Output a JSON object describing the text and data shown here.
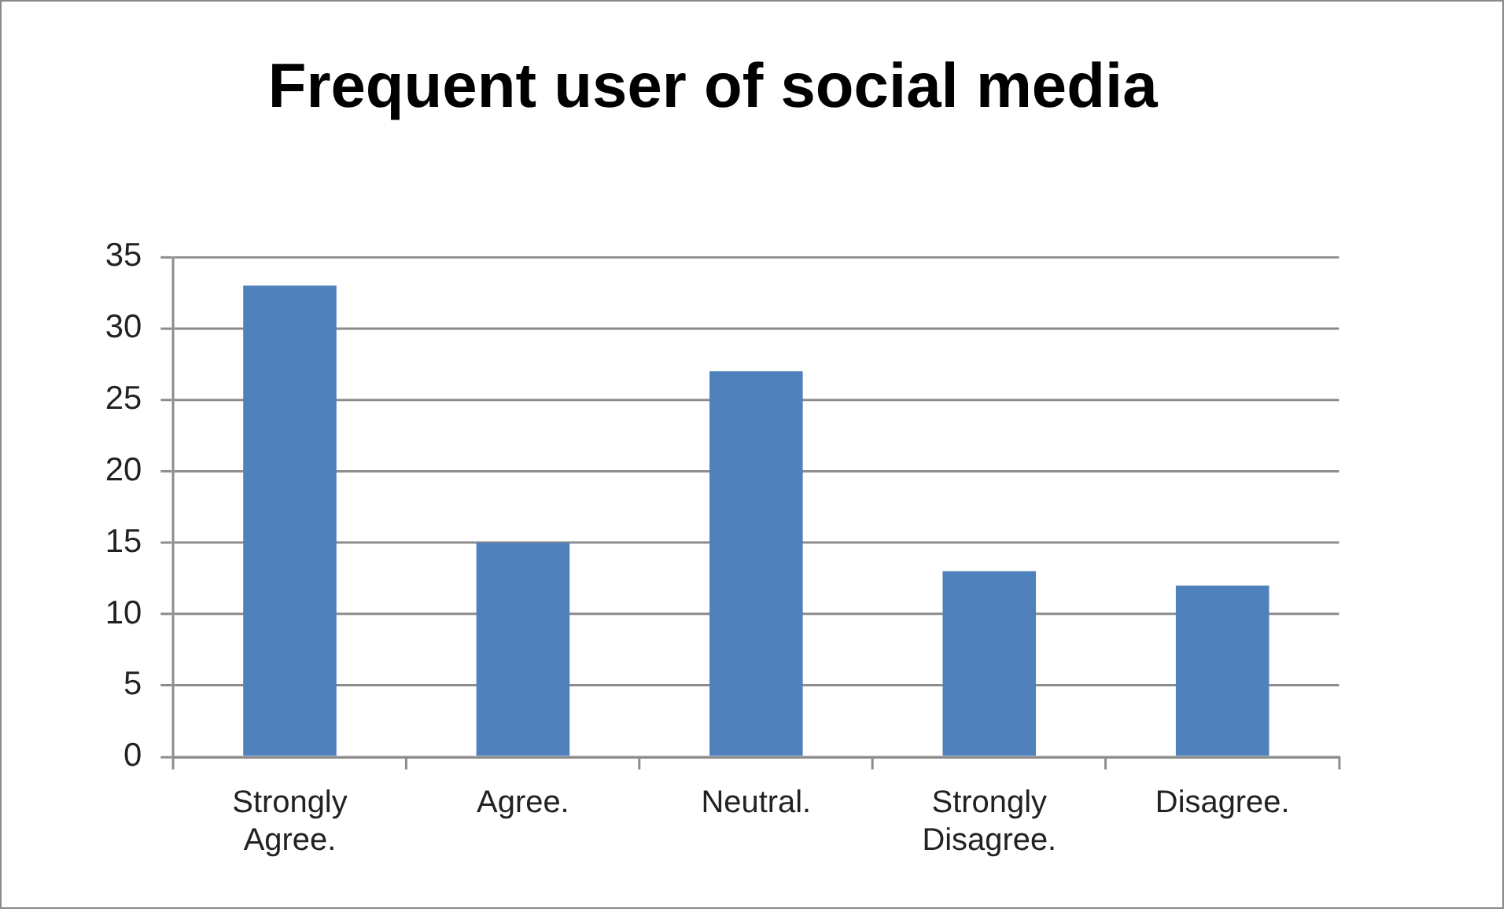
{
  "chart_data": {
    "type": "bar",
    "title": "Frequent user of social media",
    "categories": [
      "Strongly Agree.",
      "Agree.",
      "Neutral.",
      "Strongly Disagree.",
      "Disagree."
    ],
    "values": [
      33,
      15,
      27,
      13,
      12
    ],
    "color": "#4f81bd",
    "ylim": [
      0,
      35
    ],
    "yticks": [
      0,
      5,
      10,
      15,
      20,
      25,
      30,
      35
    ],
    "grid": "y"
  }
}
